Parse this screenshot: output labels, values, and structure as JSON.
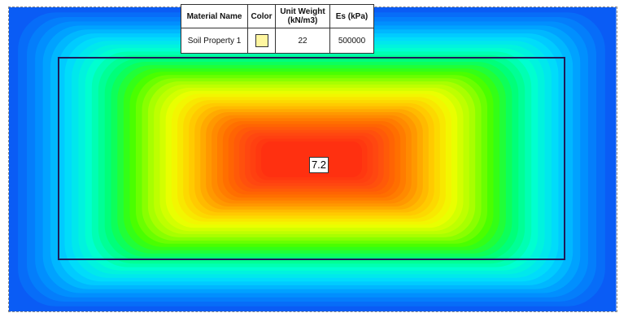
{
  "material_table": {
    "headers": [
      "Material Name",
      "Color",
      "Unit Weight\n(kN/m3)",
      "Es (kPa)"
    ],
    "headers_lines": [
      [
        "Material Name"
      ],
      [
        "Color"
      ],
      [
        "Unit Weight",
        "(kN/m3)"
      ],
      [
        "Es (kPa)"
      ]
    ],
    "rows": [
      {
        "material_name": "Soil Property 1",
        "color": "#fff6a0",
        "unit_weight": "22",
        "es": "500000"
      }
    ]
  },
  "contour": {
    "max_value_label": "7.2",
    "palette": [
      "#0a5cf5",
      "#0095ff",
      "#00d8ff",
      "#00ffd0",
      "#00ff70",
      "#40ff00",
      "#a8ff00",
      "#f0ff00",
      "#ffd000",
      "#ff9800",
      "#ff6a00",
      "#ff4a10",
      "#ff3010"
    ]
  }
}
